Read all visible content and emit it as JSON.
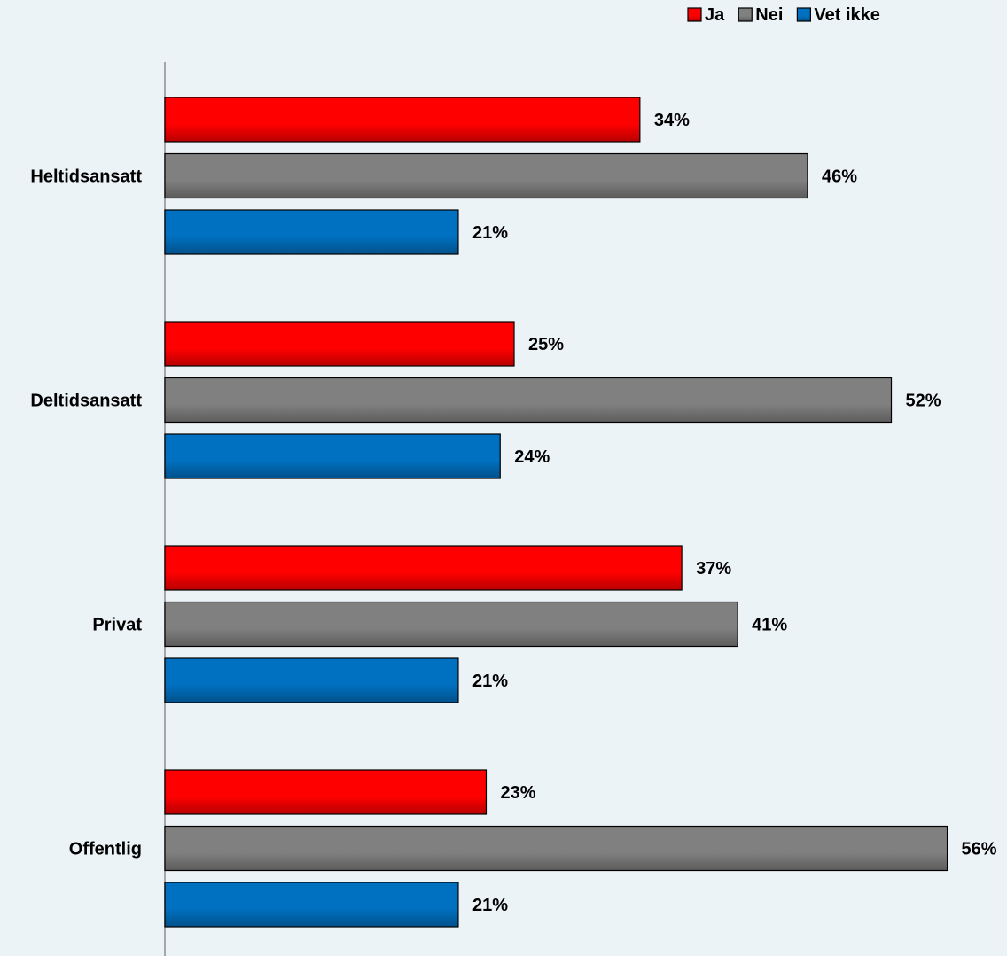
{
  "chart_data": {
    "type": "bar",
    "orientation": "horizontal",
    "categories": [
      "Heltidsansatt",
      "Deltidsansatt",
      "Privat",
      "Offentlig"
    ],
    "series": [
      {
        "name": "Ja",
        "color": "#FF0000",
        "values": [
          34,
          25,
          37,
          23
        ]
      },
      {
        "name": "Nei",
        "color": "#808080",
        "values": [
          46,
          52,
          41,
          56
        ]
      },
      {
        "name": "Vet ikke",
        "color": "#0070C0",
        "values": [
          21,
          24,
          21,
          21
        ]
      }
    ],
    "value_suffix": "%",
    "xlim": [
      0,
      56
    ],
    "grid": false,
    "legend_position": "top-right",
    "title": "",
    "xlabel": "",
    "ylabel": ""
  },
  "colors": {
    "background": "#ECF3F7",
    "axis": "#A6A6A6",
    "bar_border": "#000000",
    "text": "#000000"
  }
}
